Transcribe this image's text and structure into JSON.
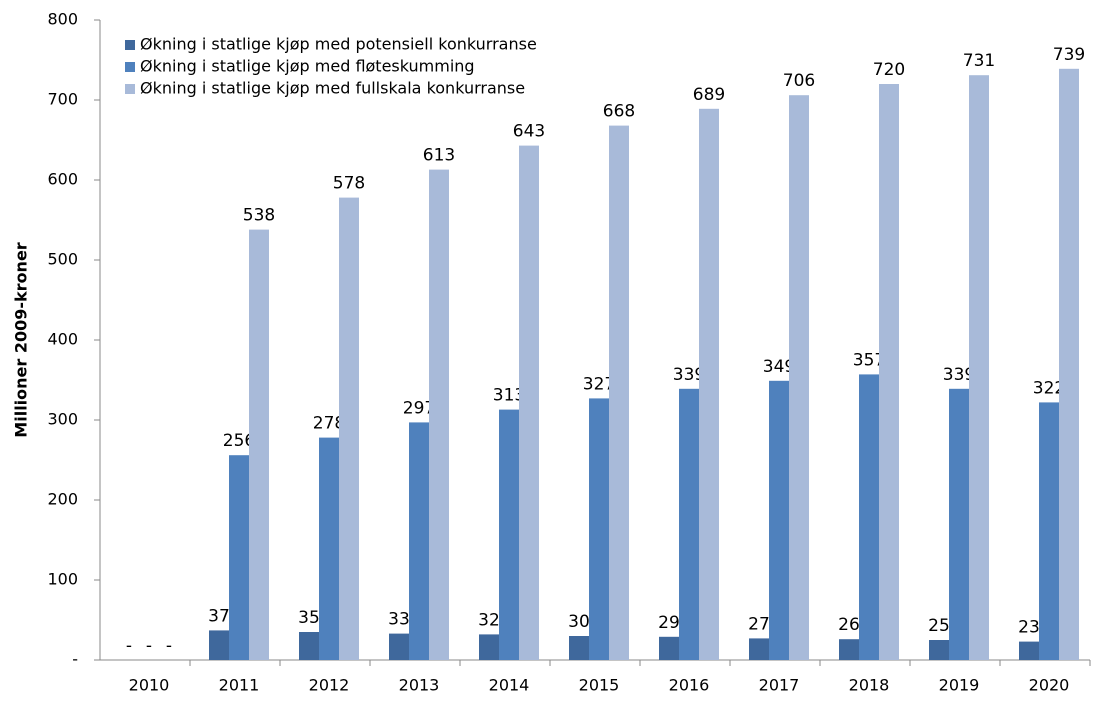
{
  "chart_data": {
    "type": "bar",
    "y_label": "Millioner 2009-kroner",
    "categories": [
      "2010",
      "2011",
      "2012",
      "2013",
      "2014",
      "2015",
      "2016",
      "2017",
      "2018",
      "2019",
      "2020"
    ],
    "series": [
      {
        "name": "Økning i statlige kjøp med potensiell konkurranse",
        "color": "#3f689c",
        "values": [
          0,
          37,
          35,
          33,
          32,
          30,
          29,
          27,
          26,
          25,
          23
        ],
        "value_labels": [
          "-",
          "37",
          "35",
          "33",
          "32",
          "30",
          "29",
          "27",
          "26",
          "25",
          "23"
        ]
      },
      {
        "name": "Økning i statlige kjøp med fløteskumming",
        "color": "#4f81bd",
        "values": [
          0,
          256,
          278,
          297,
          313,
          327,
          339,
          349,
          357,
          339,
          322
        ],
        "value_labels": [
          "-",
          "256",
          "278",
          "297",
          "313",
          "327",
          "339",
          "349",
          "357",
          "339",
          "322"
        ]
      },
      {
        "name": "Økning i statlige kjøp med fullskala konkurranse",
        "color": "#a8bad9",
        "values": [
          0,
          538,
          578,
          613,
          643,
          668,
          689,
          706,
          720,
          731,
          739
        ],
        "value_labels": [
          "-",
          "538",
          "578",
          "613",
          "643",
          "668",
          "689",
          "706",
          "720",
          "731",
          "739"
        ]
      }
    ],
    "ylim": [
      0,
      800
    ],
    "yticks": [
      {
        "value": 0,
        "label": "-"
      },
      100,
      200,
      300,
      400,
      500,
      600,
      700,
      800
    ],
    "legend": "top-left"
  }
}
